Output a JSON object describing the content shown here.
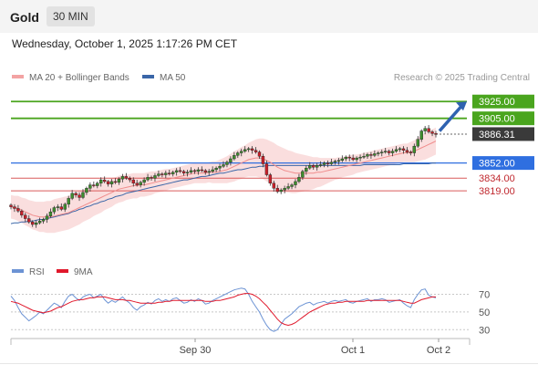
{
  "header": {
    "instrument": "Gold",
    "timeframe": "30 MIN",
    "datetime": "Wednesday, October 1, 2025 1:17:26 PM CET"
  },
  "legend": {
    "ma20": "MA 20 + Bollinger Bands",
    "ma50": "MA 50",
    "credit": "Research © 2025 Trading Central",
    "rsi": "RSI",
    "rsi_ma": "9MA"
  },
  "colors": {
    "ma20": "#f08c8c",
    "band_fill": "#fadada",
    "ma50": "#3a66a8",
    "bull_candle": "#3e8e2e",
    "bear_candle": "#c9202a",
    "resistance": "#4aa51e",
    "support": "#d95a5a",
    "pivot": "#2f6fe0",
    "last_price": "#3a3a3a",
    "arrow": "#2f62b0",
    "rsi": "#6c93d4",
    "rsi_ma": "#e0182b"
  },
  "chart_data": [
    {
      "type": "candlestick",
      "title": "Gold",
      "timeframe": "30 MIN",
      "x_tick_labels": [
        "Sep 30",
        "Oct 1",
        "Oct 2"
      ],
      "ylim": [
        3740,
        3935
      ],
      "last_price": 3886.31,
      "levels": [
        {
          "label": "3925.00",
          "value": 3925.0,
          "kind": "resistance"
        },
        {
          "label": "3905.00",
          "value": 3905.0,
          "kind": "resistance"
        },
        {
          "label": "3886.31",
          "value": 3886.31,
          "kind": "last"
        },
        {
          "label": "3852.00",
          "value": 3852.0,
          "kind": "pivot"
        },
        {
          "label": "3834.00",
          "value": 3834.0,
          "kind": "support"
        },
        {
          "label": "3819.00",
          "value": 3819.0,
          "kind": "support"
        }
      ],
      "forecast_arrow": {
        "from": 3890,
        "to": 3925,
        "direction": "up"
      },
      "close": [
        3800,
        3798,
        3795,
        3790,
        3786,
        3782,
        3779,
        3781,
        3783,
        3785,
        3789,
        3794,
        3799,
        3800,
        3797,
        3803,
        3810,
        3816,
        3814,
        3811,
        3817,
        3822,
        3826,
        3825,
        3828,
        3832,
        3830,
        3827,
        3830,
        3829,
        3833,
        3836,
        3834,
        3832,
        3828,
        3826,
        3829,
        3832,
        3835,
        3834,
        3837,
        3839,
        3838,
        3840,
        3839,
        3841,
        3843,
        3842,
        3840,
        3841,
        3843,
        3842,
        3844,
        3843,
        3841,
        3842,
        3844,
        3846,
        3848,
        3850,
        3853,
        3857,
        3861,
        3864,
        3866,
        3868,
        3869,
        3867,
        3865,
        3860,
        3851,
        3838,
        3828,
        3822,
        3818,
        3820,
        3822,
        3824,
        3826,
        3830,
        3835,
        3842,
        3846,
        3849,
        3847,
        3849,
        3850,
        3852,
        3851,
        3853,
        3854,
        3855,
        3857,
        3859,
        3858,
        3856,
        3858,
        3859,
        3860,
        3862,
        3861,
        3863,
        3864,
        3865,
        3866,
        3864,
        3866,
        3868,
        3869,
        3867,
        3865,
        3864,
        3872,
        3880,
        3890,
        3893,
        3889,
        3887,
        3886.31
      ],
      "ma20": [
        3800,
        3799,
        3798,
        3796,
        3794,
        3792,
        3790,
        3789,
        3788,
        3788,
        3788,
        3788,
        3789,
        3790,
        3791,
        3792,
        3793,
        3795,
        3797,
        3799,
        3801,
        3803,
        3805,
        3807,
        3809,
        3811,
        3813,
        3815,
        3817,
        3819,
        3821,
        3822,
        3823,
        3824,
        3825,
        3825,
        3826,
        3826,
        3827,
        3828,
        3829,
        3830,
        3831,
        3832,
        3833,
        3834,
        3835,
        3836,
        3837,
        3838,
        3839,
        3840,
        3840,
        3840,
        3840,
        3841,
        3841,
        3841,
        3842,
        3843,
        3844,
        3846,
        3848,
        3850,
        3852,
        3854,
        3856,
        3857,
        3858,
        3858,
        3857,
        3855,
        3853,
        3850,
        3847,
        3845,
        3843,
        3842,
        3841,
        3840,
        3840,
        3840,
        3840,
        3840,
        3840,
        3841,
        3841,
        3842,
        3843,
        3844,
        3845,
        3846,
        3847,
        3848,
        3849,
        3850,
        3851,
        3852,
        3853,
        3854,
        3855,
        3856,
        3857,
        3858,
        3859,
        3860,
        3861,
        3862,
        3863,
        3864,
        3864,
        3865,
        3866,
        3868,
        3870,
        3872,
        3874,
        3876,
        3878
      ],
      "ma50": [
        3780,
        3781,
        3781,
        3782,
        3782,
        3783,
        3783,
        3784,
        3785,
        3785,
        3786,
        3787,
        3788,
        3789,
        3790,
        3791,
        3792,
        3794,
        3795,
        3797,
        3798,
        3800,
        3801,
        3803,
        3804,
        3806,
        3807,
        3809,
        3810,
        3812,
        3813,
        3814,
        3816,
        3817,
        3818,
        3819,
        3820,
        3821,
        3822,
        3823,
        3824,
        3825,
        3826,
        3827,
        3828,
        3829,
        3830,
        3831,
        3832,
        3832,
        3833,
        3834,
        3835,
        3836,
        3836,
        3837,
        3838,
        3839,
        3840,
        3840,
        3841,
        3842,
        3843,
        3844,
        3844,
        3845,
        3846,
        3847,
        3847,
        3848,
        3848,
        3849,
        3849,
        3849,
        3849,
        3849,
        3849,
        3849,
        3849,
        3849,
        3849,
        3849,
        3849,
        3849,
        3849,
        3849,
        3849,
        3849,
        3849,
        3849,
        3849,
        3849,
        3849,
        3849,
        3849,
        3849,
        3849,
        3849,
        3850,
        3850,
        3850,
        3850,
        3850,
        3850,
        3850,
        3850,
        3850,
        3850,
        3850,
        3851,
        3851,
        3851,
        3851,
        3851,
        3851,
        3851,
        3851,
        3852,
        3852
      ],
      "bb_width": [
        14,
        14,
        15,
        15,
        16,
        16,
        17,
        17,
        18,
        18,
        19,
        19,
        20,
        20,
        20,
        20,
        20,
        20,
        20,
        20,
        19,
        19,
        19,
        18,
        18,
        18,
        17,
        17,
        17,
        16,
        16,
        16,
        15,
        15,
        15,
        15,
        14,
        14,
        14,
        14,
        13,
        13,
        13,
        13,
        12,
        12,
        12,
        12,
        12,
        12,
        12,
        12,
        12,
        12,
        12,
        12,
        13,
        13,
        14,
        15,
        16,
        17,
        18,
        18,
        19,
        19,
        20,
        21,
        22,
        23,
        24,
        25,
        25,
        26,
        26,
        26,
        26,
        25,
        25,
        24,
        23,
        22,
        21,
        20,
        19,
        18,
        17,
        16,
        15,
        14,
        13,
        13,
        12,
        12,
        12,
        12,
        11,
        11,
        11,
        11,
        11,
        11,
        11,
        11,
        11,
        11,
        11,
        11,
        11,
        11,
        11,
        12,
        13,
        14,
        15,
        16,
        16,
        16,
        16
      ]
    },
    {
      "type": "line",
      "title": "RSI",
      "yticks": [
        30,
        50,
        70
      ],
      "ylim": [
        20,
        85
      ],
      "series": [
        {
          "name": "RSI",
          "values": [
            68,
            63,
            55,
            48,
            44,
            40,
            43,
            46,
            50,
            48,
            52,
            56,
            60,
            58,
            55,
            62,
            68,
            70,
            66,
            63,
            67,
            69,
            70,
            66,
            68,
            70,
            64,
            60,
            63,
            61,
            64,
            67,
            63,
            60,
            55,
            52,
            56,
            58,
            61,
            59,
            63,
            65,
            62,
            64,
            62,
            65,
            66,
            63,
            60,
            61,
            64,
            62,
            65,
            63,
            59,
            60,
            63,
            65,
            67,
            69,
            71,
            73,
            75,
            76,
            77,
            76,
            70,
            62,
            56,
            50,
            42,
            35,
            30,
            28,
            30,
            36,
            42,
            45,
            48,
            52,
            56,
            58,
            60,
            61,
            58,
            60,
            61,
            62,
            60,
            62,
            63,
            62,
            63,
            64,
            61,
            60,
            62,
            63,
            64,
            65,
            62,
            64,
            64,
            65,
            64,
            61,
            62,
            63,
            64,
            60,
            57,
            55,
            64,
            70,
            75,
            76,
            69,
            67,
            66
          ]
        },
        {
          "name": "9MA",
          "values": [
            62,
            61,
            60,
            58,
            56,
            54,
            52,
            51,
            50,
            49,
            50,
            51,
            53,
            55,
            56,
            58,
            60,
            62,
            63,
            64,
            64,
            65,
            66,
            66,
            67,
            67,
            67,
            66,
            65,
            64,
            64,
            64,
            63,
            63,
            62,
            61,
            60,
            60,
            60,
            60,
            60,
            61,
            61,
            62,
            62,
            63,
            63,
            63,
            63,
            63,
            63,
            63,
            63,
            63,
            62,
            62,
            62,
            63,
            63,
            64,
            65,
            66,
            67,
            69,
            70,
            71,
            71,
            70,
            68,
            65,
            61,
            57,
            52,
            47,
            42,
            38,
            36,
            35,
            36,
            38,
            41,
            44,
            47,
            50,
            52,
            54,
            56,
            58,
            59,
            60,
            60,
            61,
            61,
            62,
            62,
            62,
            62,
            62,
            62,
            63,
            63,
            63,
            63,
            63,
            63,
            63,
            63,
            63,
            63,
            62,
            61,
            60,
            60,
            62,
            64,
            65,
            66,
            67,
            67
          ]
        }
      ]
    }
  ]
}
